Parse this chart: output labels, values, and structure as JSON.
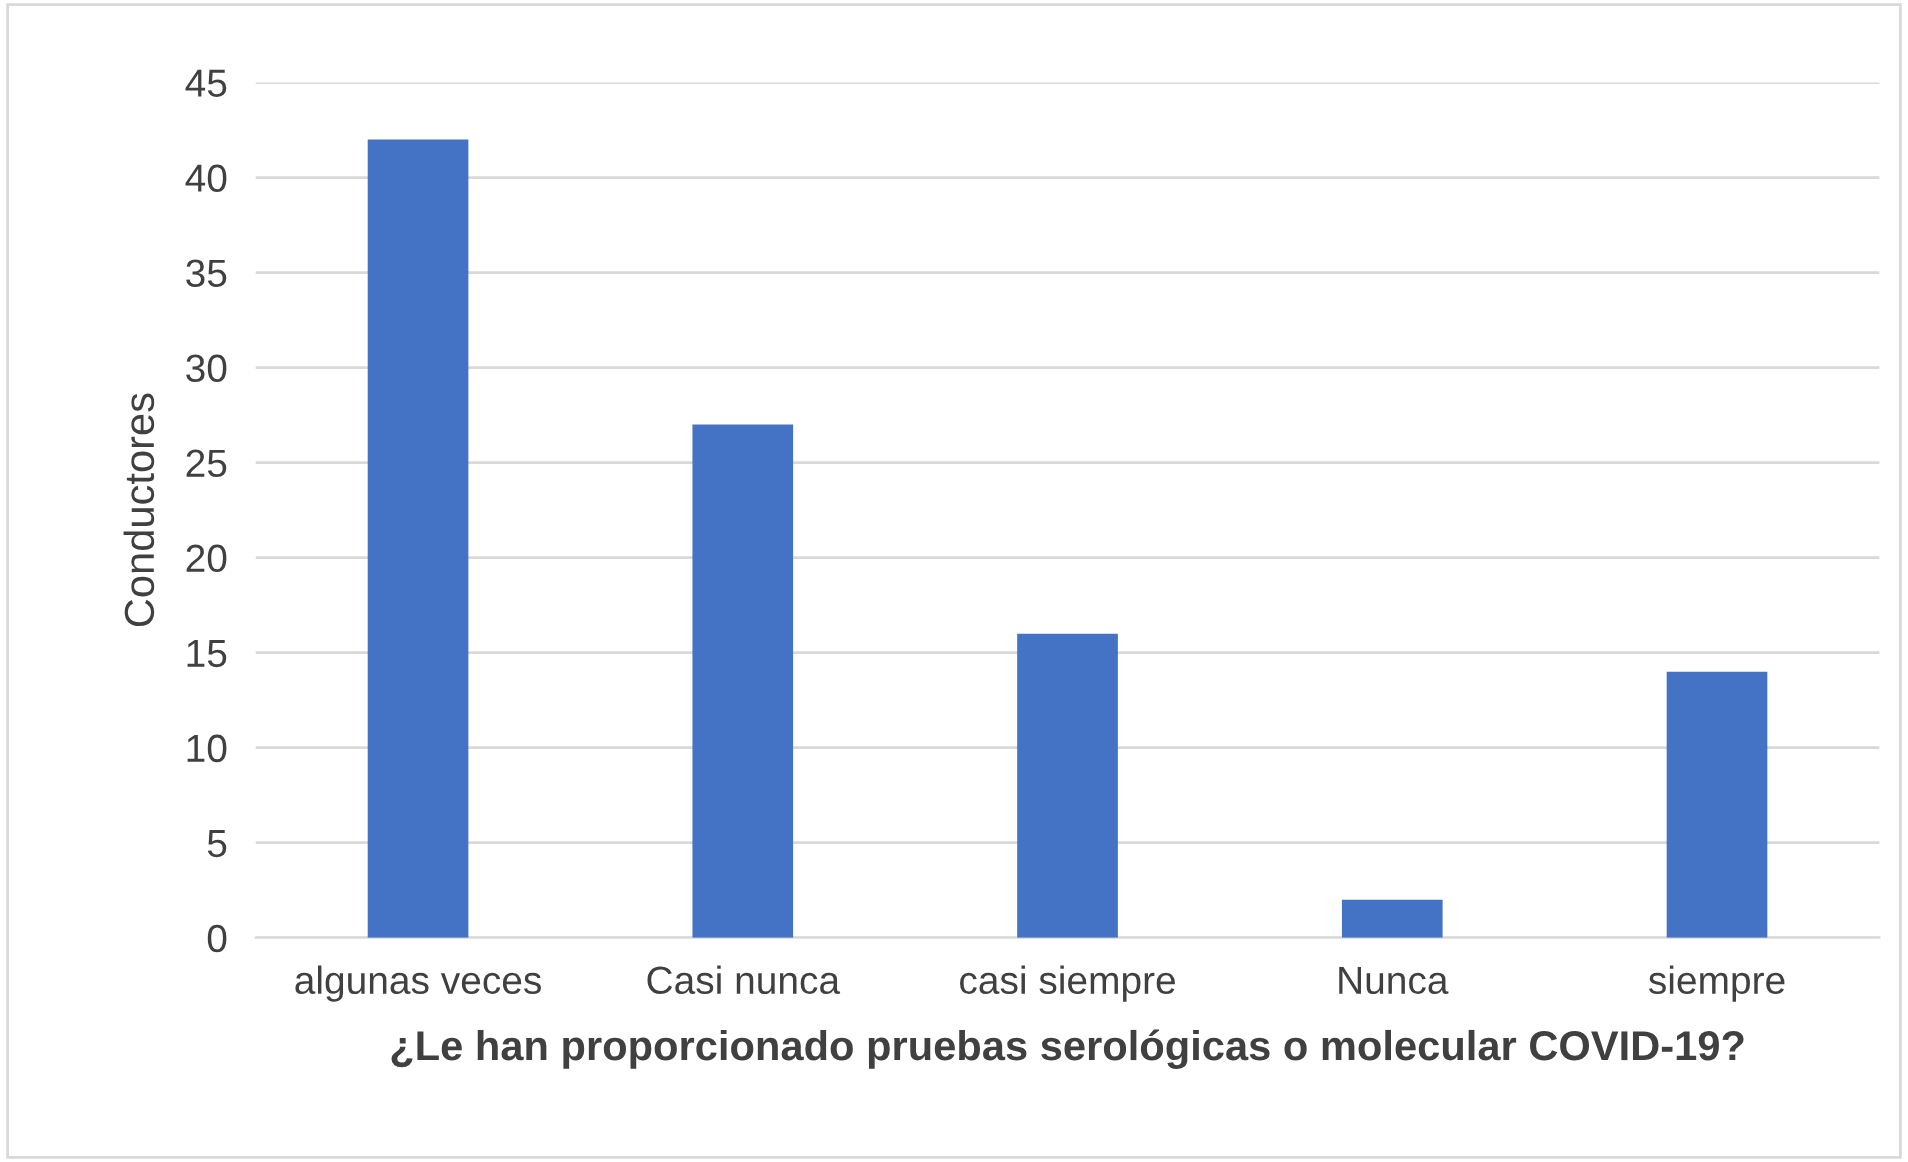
{
  "chart_data": {
    "type": "bar",
    "xlabel": "¿Le han proporcionado pruebas serológicas o molecular COVID-19?",
    "ylabel": "Conductores",
    "categories": [
      "algunas veces",
      "Casi nunca",
      "casi siempre",
      "Nunca",
      "siempre"
    ],
    "values": [
      42,
      27,
      16,
      2,
      14
    ],
    "color": "#4472c4",
    "ylim": [
      0,
      45
    ],
    "yticks": [
      0,
      5,
      10,
      15,
      20,
      25,
      30,
      35,
      40,
      45
    ],
    "grid": "y"
  }
}
